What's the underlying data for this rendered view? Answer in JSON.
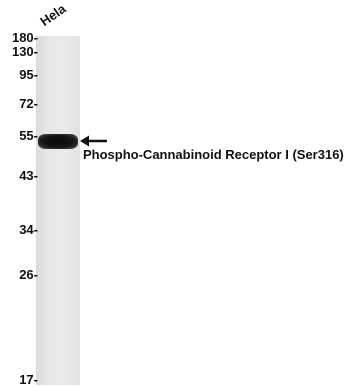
{
  "sample_label": "Hela",
  "markers": [
    {
      "label": "180-"
    },
    {
      "label": "130-"
    },
    {
      "label": "95-"
    },
    {
      "label": "72-"
    },
    {
      "label": "55-"
    },
    {
      "label": "43-"
    },
    {
      "label": "34-"
    },
    {
      "label": "26-"
    },
    {
      "label": "17-"
    }
  ],
  "target_label": "Phospho-Cannabinoid Receptor I (Ser316)",
  "colors": {
    "band": "#111111",
    "lane": "#e6e6e6",
    "text": "#111111"
  }
}
